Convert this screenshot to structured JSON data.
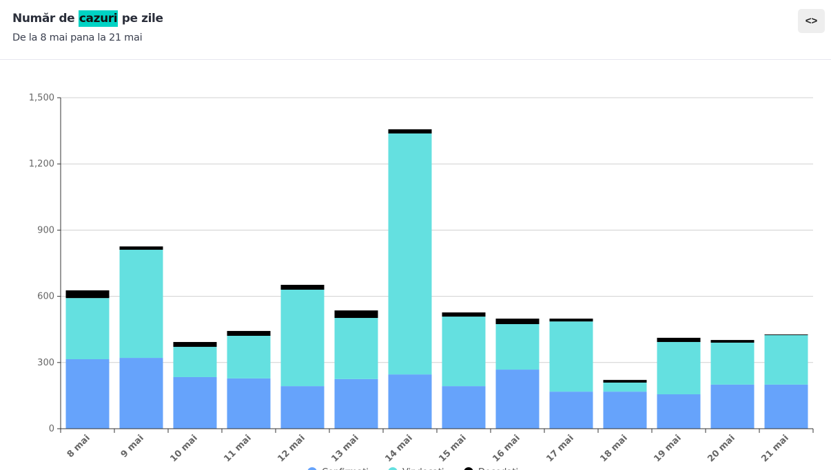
{
  "header": {
    "title_before": "Număr de ",
    "title_highlight": "cazuri",
    "title_after": " pe zile",
    "subtitle": "De la 8 mai pana la 21 mai",
    "embed_button": "<>"
  },
  "colors": {
    "confirmed": "#66a3fb",
    "recovered": "#64e0e0",
    "deceased": "#000000",
    "highlight": "#00d3c4"
  },
  "chart_data": {
    "type": "bar",
    "stacked": true,
    "categories": [
      "8 mai",
      "9 mai",
      "10 mai",
      "11 mai",
      "12 mai",
      "13 mai",
      "14 mai",
      "15 mai",
      "16 mai",
      "17 mai",
      "18 mai",
      "19 mai",
      "20 mai",
      "21 mai"
    ],
    "series": [
      {
        "name": "Confirmați",
        "color": "#66a3fb",
        "values": [
          315,
          321,
          234,
          228,
          193,
          225,
          246,
          193,
          268,
          168,
          168,
          156,
          200,
          200
        ]
      },
      {
        "name": "Vindecați",
        "color": "#64e0e0",
        "values": [
          277,
          490,
          137,
          193,
          437,
          277,
          1092,
          315,
          206,
          318,
          41,
          237,
          190,
          224
        ]
      },
      {
        "name": "Decedați",
        "color": "#000000",
        "values": [
          35,
          15,
          22,
          22,
          22,
          34,
          19,
          19,
          25,
          13,
          12,
          19,
          12,
          3
        ]
      }
    ],
    "yticks": [
      "0",
      "300",
      "600",
      "900",
      "1,200",
      "1,500"
    ],
    "ytick_values": [
      0,
      300,
      600,
      900,
      1200,
      1500
    ],
    "ylim": [
      0,
      1500
    ],
    "grid": true,
    "legend_position": "bottom",
    "title": "",
    "xlabel": "",
    "ylabel": ""
  }
}
